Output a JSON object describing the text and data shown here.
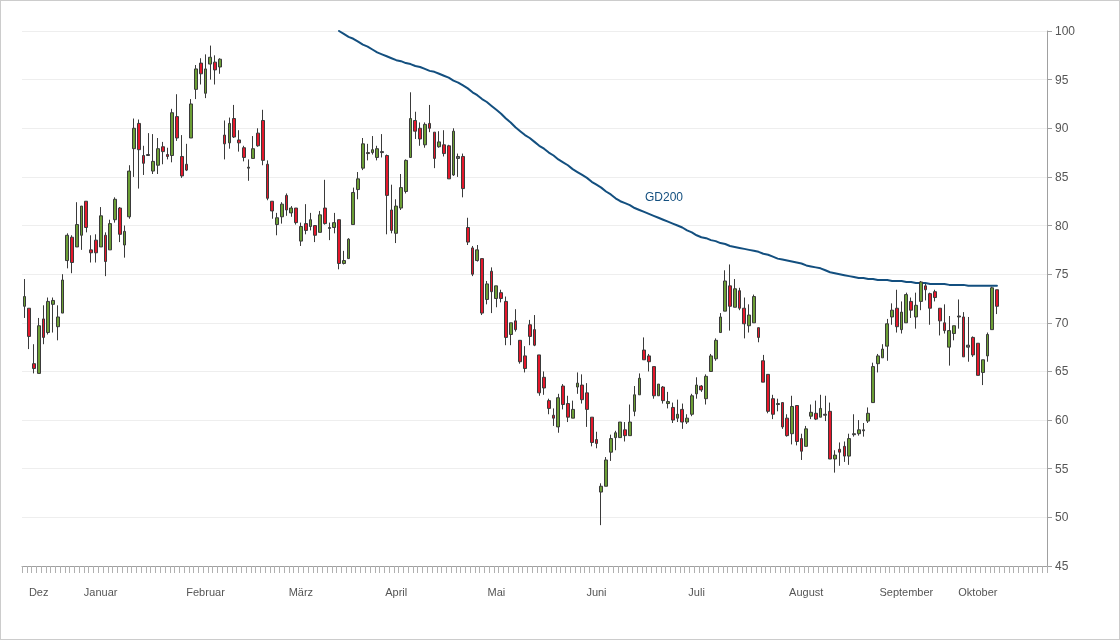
{
  "chart_data": {
    "type": "candlestick",
    "categories": [
      null,
      null,
      null,
      "Dez",
      null,
      null,
      null,
      null,
      null,
      null,
      null,
      null,
      null,
      null,
      null,
      null,
      "Januar",
      null,
      null,
      null,
      null,
      null,
      null,
      null,
      null,
      null,
      null,
      null,
      null,
      null,
      null,
      null,
      null,
      null,
      null,
      null,
      null,
      null,
      "Februar",
      null,
      null,
      null,
      null,
      null,
      null,
      null,
      null,
      null,
      null,
      null,
      null,
      null,
      null,
      null,
      null,
      null,
      null,
      null,
      "März",
      null,
      null,
      null,
      null,
      null,
      null,
      null,
      null,
      null,
      null,
      null,
      null,
      null,
      null,
      null,
      null,
      null,
      null,
      null,
      "April",
      null,
      null,
      null,
      null,
      null,
      null,
      null,
      null,
      null,
      null,
      null,
      null,
      null,
      null,
      null,
      null,
      null,
      null,
      null,
      null,
      "Mai",
      null,
      null,
      null,
      null,
      null,
      null,
      null,
      null,
      null,
      null,
      null,
      null,
      null,
      null,
      null,
      null,
      null,
      null,
      null,
      null,
      "Juni",
      null,
      null,
      null,
      null,
      null,
      null,
      null,
      null,
      null,
      null,
      null,
      null,
      null,
      null,
      null,
      null,
      null,
      null,
      null,
      null,
      "Juli",
      null,
      null,
      null,
      null,
      null,
      null,
      null,
      null,
      null,
      null,
      null,
      null,
      null,
      null,
      null,
      null,
      null,
      null,
      null,
      null,
      null,
      null,
      "August",
      null,
      null,
      null,
      null,
      null,
      null,
      null,
      null,
      null,
      null,
      null,
      null,
      null,
      null,
      null,
      null,
      null,
      null,
      null,
      null,
      "September",
      null,
      null,
      null,
      null,
      null,
      null,
      null,
      null,
      null,
      null,
      null,
      null,
      null,
      null,
      "Oktober",
      null,
      null,
      null,
      null
    ],
    "ohlc": [
      [
        71.7,
        74.5,
        70.5,
        72.7
      ],
      [
        71.5,
        71.5,
        67.3,
        68.6
      ],
      [
        65.8,
        67.8,
        64.8,
        65.3
      ],
      [
        64.8,
        70.5,
        64.8,
        69.7
      ],
      [
        70.4,
        71.8,
        67.8,
        68.5
      ],
      [
        69.0,
        72.6,
        68.8,
        72.2
      ],
      [
        71.9,
        72.6,
        69.0,
        72.3
      ],
      [
        69.6,
        71.8,
        68.2,
        70.6
      ],
      [
        71.0,
        75.0,
        71.0,
        74.4
      ],
      [
        76.4,
        79.2,
        75.6,
        79.0
      ],
      [
        78.8,
        79.0,
        75.1,
        76.2
      ],
      [
        77.8,
        82.4,
        77.8,
        80.1
      ],
      [
        79.0,
        82.0,
        77.5,
        82.0
      ],
      [
        82.5,
        82.5,
        79.3,
        79.8
      ],
      [
        77.5,
        79.0,
        76.2,
        77.2
      ],
      [
        78.5,
        79.1,
        76.2,
        77.2
      ],
      [
        77.8,
        81.9,
        77.8,
        81.0
      ],
      [
        79.0,
        79.3,
        74.8,
        76.3
      ],
      [
        77.5,
        80.6,
        77.5,
        80.2
      ],
      [
        80.6,
        82.9,
        80.3,
        82.7
      ],
      [
        81.8,
        81.9,
        78.3,
        79.1
      ],
      [
        78.0,
        80.0,
        76.7,
        79.4
      ],
      [
        80.9,
        86.2,
        80.7,
        85.6
      ],
      [
        87.9,
        91.0,
        85.0,
        90.0
      ],
      [
        90.5,
        90.9,
        83.8,
        87.8
      ],
      [
        87.2,
        88.2,
        85.2,
        86.4
      ],
      [
        87.3,
        89.5,
        87.2,
        87.2
      ],
      [
        85.6,
        89.4,
        85.3,
        86.6
      ],
      [
        86.2,
        89.0,
        85.3,
        87.9
      ],
      [
        88.1,
        88.6,
        86.3,
        87.6
      ],
      [
        87.3,
        88.0,
        86.8,
        87.1
      ],
      [
        87.2,
        92.0,
        86.5,
        91.6
      ],
      [
        91.2,
        93.5,
        88.7,
        89.0
      ],
      [
        87.1,
        89.3,
        84.9,
        85.1
      ],
      [
        86.3,
        88.4,
        85.6,
        85.7
      ],
      [
        89.0,
        93.0,
        89.0,
        92.5
      ],
      [
        94.0,
        96.5,
        93.0,
        96.1
      ],
      [
        96.7,
        97.2,
        94.5,
        95.6
      ],
      [
        93.6,
        97.6,
        93.1,
        96.1
      ],
      [
        96.6,
        98.5,
        95.0,
        97.3
      ],
      [
        96.8,
        97.5,
        94.5,
        96.0
      ],
      [
        96.3,
        97.2,
        95.6,
        97.1
      ],
      [
        89.3,
        90.8,
        86.8,
        88.4
      ],
      [
        88.5,
        91.1,
        87.9,
        90.5
      ],
      [
        91.0,
        92.4,
        89.0,
        89.1
      ],
      [
        88.8,
        89.8,
        87.6,
        88.5
      ],
      [
        88.0,
        88.2,
        86.6,
        87.0
      ],
      [
        86.0,
        86.8,
        84.6,
        85.9
      ],
      [
        86.9,
        89.2,
        86.9,
        87.9
      ],
      [
        89.5,
        90.0,
        88.1,
        88.2
      ],
      [
        90.8,
        91.9,
        86.2,
        86.7
      ],
      [
        86.3,
        86.7,
        82.6,
        82.8
      ],
      [
        82.5,
        82.5,
        80.7,
        81.5
      ],
      [
        80.1,
        81.3,
        79.0,
        80.8
      ],
      [
        80.9,
        82.4,
        80.2,
        82.2
      ],
      [
        83.1,
        83.3,
        81.0,
        81.6
      ],
      [
        81.3,
        82.0,
        80.9,
        81.8
      ],
      [
        81.8,
        81.8,
        80.1,
        80.3
      ],
      [
        78.4,
        80.3,
        77.9,
        79.9
      ],
      [
        80.2,
        82.2,
        79.1,
        79.5
      ],
      [
        79.9,
        81.3,
        79.5,
        80.6
      ],
      [
        80.0,
        80.0,
        78.3,
        79.0
      ],
      [
        79.3,
        81.5,
        79.3,
        81.1
      ],
      [
        81.8,
        84.7,
        80.1,
        80.2
      ],
      [
        79.8,
        80.3,
        78.5,
        79.7
      ],
      [
        79.8,
        81.3,
        79.2,
        80.3
      ],
      [
        80.6,
        80.6,
        75.5,
        76.1
      ],
      [
        76.1,
        77.4,
        76.0,
        76.4
      ],
      [
        76.6,
        78.7,
        76.6,
        78.6
      ],
      [
        80.1,
        83.9,
        80.1,
        83.4
      ],
      [
        83.7,
        85.5,
        82.7,
        84.8
      ],
      [
        85.9,
        89.0,
        85.7,
        88.4
      ],
      [
        87.5,
        88.4,
        86.7,
        87.4
      ],
      [
        87.5,
        89.2,
        87.3,
        87.8
      ],
      [
        87.0,
        88.2,
        86.7,
        87.9
      ],
      [
        87.6,
        89.4,
        87.0,
        87.5
      ],
      [
        87.2,
        87.3,
        79.1,
        83.1
      ],
      [
        81.6,
        84.2,
        79.2,
        79.5
      ],
      [
        79.2,
        82.7,
        78.2,
        82.0
      ],
      [
        81.8,
        85.3,
        81.6,
        83.9
      ],
      [
        83.5,
        86.8,
        83.3,
        86.7
      ],
      [
        87.0,
        93.7,
        87.0,
        91.0
      ],
      [
        90.8,
        91.7,
        88.9,
        89.7
      ],
      [
        90.0,
        90.6,
        88.2,
        88.9
      ],
      [
        88.3,
        90.6,
        88.0,
        90.4
      ],
      [
        90.5,
        92.4,
        89.6,
        90.0
      ],
      [
        89.6,
        89.6,
        85.9,
        86.9
      ],
      [
        88.1,
        89.7,
        88.0,
        88.6
      ],
      [
        88.3,
        89.8,
        87.1,
        87.4
      ],
      [
        88.2,
        88.3,
        84.8,
        84.8
      ],
      [
        85.2,
        90.0,
        85.1,
        89.7
      ],
      [
        87.1,
        87.4,
        85.0,
        86.9
      ],
      [
        87.1,
        87.4,
        82.9,
        83.8
      ],
      [
        79.8,
        80.8,
        78.0,
        78.3
      ],
      [
        77.7,
        77.9,
        74.8,
        75.0
      ],
      [
        76.4,
        78.0,
        76.3,
        77.5
      ],
      [
        76.6,
        76.6,
        70.8,
        71.0
      ],
      [
        72.4,
        74.3,
        71.9,
        74.0
      ],
      [
        75.3,
        75.7,
        71.0,
        73.2
      ],
      [
        72.5,
        73.8,
        71.6,
        73.8
      ],
      [
        73.1,
        73.4,
        72.1,
        72.5
      ],
      [
        72.2,
        72.7,
        67.7,
        68.5
      ],
      [
        68.8,
        70.0,
        67.7,
        70.0
      ],
      [
        70.2,
        71.4,
        69.1,
        69.3
      ],
      [
        68.2,
        68.2,
        65.8,
        66.0
      ],
      [
        66.6,
        67.6,
        64.9,
        65.3
      ],
      [
        69.8,
        70.3,
        67.7,
        68.6
      ],
      [
        69.3,
        70.8,
        67.6,
        67.7
      ],
      [
        66.7,
        66.7,
        62.5,
        62.8
      ],
      [
        64.4,
        65.0,
        62.6,
        63.3
      ],
      [
        62.0,
        62.2,
        60.6,
        61.2
      ],
      [
        60.5,
        61.2,
        59.4,
        60.2
      ],
      [
        59.3,
        62.7,
        58.7,
        62.3
      ],
      [
        63.5,
        63.7,
        61.1,
        61.6
      ],
      [
        61.7,
        62.5,
        59.8,
        60.3
      ],
      [
        60.2,
        62.0,
        60.2,
        61.1
      ],
      [
        63.4,
        64.9,
        62.7,
        63.8
      ],
      [
        63.6,
        64.7,
        61.7,
        62.1
      ],
      [
        62.8,
        63.8,
        59.3,
        61.1
      ],
      [
        60.3,
        60.3,
        57.3,
        57.7
      ],
      [
        58.0,
        58.8,
        57.1,
        57.6
      ],
      [
        52.6,
        53.5,
        49.2,
        53.2
      ],
      [
        53.2,
        56.2,
        53.2,
        55.9
      ],
      [
        56.7,
        58.5,
        55.8,
        58.1
      ],
      [
        58.2,
        58.9,
        56.9,
        58.7
      ],
      [
        58.2,
        59.8,
        58.2,
        59.8
      ],
      [
        59.0,
        59.8,
        57.8,
        58.4
      ],
      [
        58.4,
        61.6,
        58.4,
        59.8
      ],
      [
        60.9,
        63.5,
        60.4,
        62.6
      ],
      [
        62.6,
        64.8,
        62.6,
        64.3
      ],
      [
        67.2,
        68.5,
        66.2,
        66.2
      ],
      [
        66.6,
        66.8,
        65.0,
        66.0
      ],
      [
        65.5,
        65.5,
        62.2,
        62.5
      ],
      [
        62.5,
        63.7,
        62.5,
        63.7
      ],
      [
        63.4,
        63.5,
        61.7,
        62.0
      ],
      [
        61.7,
        62.9,
        61.2,
        61.9
      ],
      [
        61.3,
        61.8,
        59.7,
        60.0
      ],
      [
        60.2,
        62.1,
        59.8,
        60.6
      ],
      [
        61.1,
        61.7,
        59.1,
        59.8
      ],
      [
        59.8,
        60.6,
        59.6,
        60.2
      ],
      [
        60.6,
        62.7,
        60.4,
        62.5
      ],
      [
        62.7,
        64.4,
        62.2,
        63.6
      ],
      [
        63.5,
        63.6,
        62.9,
        63.1
      ],
      [
        62.2,
        64.7,
        61.6,
        64.5
      ],
      [
        65.0,
        66.8,
        65.0,
        66.6
      ],
      [
        66.3,
        68.4,
        66.1,
        68.2
      ],
      [
        69.0,
        71.0,
        69.0,
        70.6
      ],
      [
        71.2,
        75.4,
        71.2,
        74.3
      ],
      [
        73.8,
        76.0,
        69.2,
        71.7
      ],
      [
        71.6,
        74.5,
        71.6,
        73.5
      ],
      [
        73.3,
        73.6,
        71.3,
        71.5
      ],
      [
        71.5,
        72.6,
        68.4,
        69.9
      ],
      [
        69.7,
        71.9,
        69.0,
        70.8
      ],
      [
        70.0,
        72.9,
        70.0,
        72.7
      ],
      [
        69.5,
        69.5,
        68.0,
        68.5
      ],
      [
        66.1,
        66.7,
        63.9,
        63.9
      ],
      [
        64.7,
        64.7,
        60.7,
        60.9
      ],
      [
        62.2,
        62.6,
        60.1,
        60.6
      ],
      [
        61.7,
        62.2,
        60.9,
        61.6
      ],
      [
        61.8,
        61.8,
        59.1,
        59.3
      ],
      [
        60.2,
        60.6,
        58.3,
        58.4
      ],
      [
        58.6,
        62.5,
        57.5,
        61.4
      ],
      [
        61.5,
        61.5,
        57.4,
        57.8
      ],
      [
        58.1,
        58.6,
        55.9,
        56.8
      ],
      [
        57.3,
        59.4,
        57.3,
        59.1
      ],
      [
        60.4,
        61.6,
        60.1,
        60.8
      ],
      [
        60.7,
        62.0,
        60.0,
        60.1
      ],
      [
        60.3,
        62.6,
        60.3,
        61.2
      ],
      [
        60.6,
        62.5,
        59.9,
        60.5
      ],
      [
        60.9,
        61.8,
        56.0,
        56.0
      ],
      [
        56.0,
        56.9,
        54.6,
        56.4
      ],
      [
        57.0,
        57.7,
        55.3,
        56.7
      ],
      [
        57.3,
        57.8,
        55.7,
        56.3
      ],
      [
        56.3,
        58.6,
        55.4,
        58.1
      ],
      [
        58.6,
        60.6,
        58.3,
        58.5
      ],
      [
        58.6,
        60.0,
        58.4,
        59.0
      ],
      [
        59.0,
        59.7,
        58.3,
        58.9
      ],
      [
        59.9,
        61.3,
        59.7,
        60.7
      ],
      [
        61.8,
        65.9,
        61.8,
        65.5
      ],
      [
        65.8,
        66.8,
        64.9,
        66.6
      ],
      [
        66.4,
        67.8,
        66.4,
        67.3
      ],
      [
        67.6,
        70.4,
        66.1,
        69.9
      ],
      [
        70.6,
        72.0,
        69.8,
        71.3
      ],
      [
        71.5,
        73.4,
        69.0,
        69.6
      ],
      [
        69.3,
        72.2,
        68.9,
        71.1
      ],
      [
        70.0,
        73.1,
        70.0,
        72.9
      ],
      [
        72.2,
        72.6,
        70.5,
        71.3
      ],
      [
        70.6,
        73.1,
        69.4,
        71.8
      ],
      [
        72.2,
        74.3,
        71.3,
        74.2
      ],
      [
        73.8,
        74.0,
        72.3,
        73.4
      ],
      [
        73.0,
        73.1,
        69.8,
        71.5
      ],
      [
        73.2,
        73.4,
        72.2,
        72.6
      ],
      [
        71.5,
        71.5,
        68.7,
        70.2
      ],
      [
        70.0,
        71.9,
        68.9,
        69.2
      ],
      [
        67.5,
        70.7,
        65.6,
        69.2
      ],
      [
        68.9,
        69.7,
        68.2,
        69.7
      ],
      [
        70.7,
        72.4,
        69.4,
        70.6
      ],
      [
        70.6,
        71.1,
        66.5,
        66.5
      ],
      [
        67.7,
        70.6,
        66.0,
        67.5
      ],
      [
        68.5,
        68.6,
        66.5,
        66.7
      ],
      [
        67.9,
        67.9,
        64.6,
        64.6
      ],
      [
        64.9,
        66.2,
        63.6,
        66.2
      ],
      [
        66.6,
        69.0,
        66.0,
        68.8
      ],
      [
        69.3,
        73.7,
        69.3,
        73.6
      ],
      [
        73.4,
        73.4,
        70.9,
        71.7
      ]
    ],
    "colors": [
      "#6b9e35",
      "#e4172b",
      "#e4172b",
      "#6b9e35",
      "#e4172b",
      "#6b9e35",
      "#6b9e35",
      "#6b9e35",
      "#6b9e35",
      "#6b9e35",
      "#e4172b",
      "#6b9e35",
      "#6b9e35",
      "#e4172b",
      "#e4172b",
      "#e4172b",
      "#6b9e35",
      "#e4172b",
      "#6b9e35",
      "#6b9e35",
      "#e4172b",
      "#6b9e35",
      "#6b9e35",
      "#6b9e35",
      "#e4172b",
      "#e4172b",
      "#6e6e6e",
      "#6b9e35",
      "#6b9e35",
      "#e4172b",
      "#e4172b",
      "#6b9e35",
      "#e4172b",
      "#e4172b",
      "#e4172b",
      "#6b9e35",
      "#6b9e35",
      "#e4172b",
      "#6b9e35",
      "#6b9e35",
      "#e4172b",
      "#6b9e35",
      "#e4172b",
      "#6b9e35",
      "#e4172b",
      "#e4172b",
      "#e4172b",
      "#6e6e6e",
      "#6b9e35",
      "#e4172b",
      "#e4172b",
      "#e4172b",
      "#e4172b",
      "#6b9e35",
      "#6b9e35",
      "#e4172b",
      "#6b9e35",
      "#e4172b",
      "#6b9e35",
      "#e4172b",
      "#6b9e35",
      "#e4172b",
      "#6b9e35",
      "#e4172b",
      "#6e6e6e",
      "#6b9e35",
      "#e4172b",
      "#6b9e35",
      "#6b9e35",
      "#6b9e35",
      "#6b9e35",
      "#6b9e35",
      "#6e6e6e",
      "#6b9e35",
      "#6b9e35",
      "#6e6e6e",
      "#e4172b",
      "#e4172b",
      "#6b9e35",
      "#6b9e35",
      "#6b9e35",
      "#6b9e35",
      "#e4172b",
      "#e4172b",
      "#6b9e35",
      "#e4172b",
      "#e4172b",
      "#6b9e35",
      "#e4172b",
      "#e4172b",
      "#6b9e35",
      "#6e6e6e",
      "#e4172b",
      "#e4172b",
      "#e4172b",
      "#6b9e35",
      "#e4172b",
      "#6b9e35",
      "#e4172b",
      "#6b9e35",
      "#e4172b",
      "#e4172b",
      "#6b9e35",
      "#e4172b",
      "#e4172b",
      "#e4172b",
      "#e4172b",
      "#e4172b",
      "#e4172b",
      "#e4172b",
      "#e4172b",
      "#e4172b",
      "#6b9e35",
      "#e4172b",
      "#e4172b",
      "#6b9e35",
      "#6b9e35",
      "#e4172b",
      "#e4172b",
      "#e4172b",
      "#e4172b",
      "#6b9e35",
      "#6b9e35",
      "#6b9e35",
      "#6b9e35",
      "#6b9e35",
      "#e4172b",
      "#6b9e35",
      "#6b9e35",
      "#6b9e35",
      "#e4172b",
      "#e4172b",
      "#e4172b",
      "#6b9e35",
      "#e4172b",
      "#6b9e35",
      "#e4172b",
      "#6b9e35",
      "#e4172b",
      "#6b9e35",
      "#6b9e35",
      "#6b9e35",
      "#e4172b",
      "#6b9e35",
      "#6b9e35",
      "#6b9e35",
      "#6b9e35",
      "#6b9e35",
      "#e4172b",
      "#6b9e35",
      "#e4172b",
      "#e4172b",
      "#6b9e35",
      "#6b9e35",
      "#e4172b",
      "#e4172b",
      "#e4172b",
      "#e4172b",
      "#6e6e6e",
      "#e4172b",
      "#e4172b",
      "#6b9e35",
      "#e4172b",
      "#e4172b",
      "#6b9e35",
      "#6b9e35",
      "#e4172b",
      "#6b9e35",
      "#6e6e6e",
      "#e4172b",
      "#6b9e35",
      "#e4172b",
      "#e4172b",
      "#6b9e35",
      "#6e6e6e",
      "#6b9e35",
      "#6e6e6e",
      "#6b9e35",
      "#6b9e35",
      "#6b9e35",
      "#6b9e35",
      "#6b9e35",
      "#6b9e35",
      "#e4172b",
      "#6b9e35",
      "#6b9e35",
      "#e4172b",
      "#6b9e35",
      "#6b9e35",
      "#e4172b",
      "#e4172b",
      "#e4172b",
      "#e4172b",
      "#e4172b",
      "#6b9e35",
      "#6b9e35",
      "#6e6e6e",
      "#e4172b",
      "#6e6e6e",
      "#e4172b",
      "#e4172b",
      "#6b9e35",
      "#6b9e35",
      "#6b9e35",
      "#e4172b"
    ],
    "series": [
      {
        "type": "line",
        "name": "GD200",
        "color": "#134f7f",
        "values": [
          null,
          null,
          null,
          null,
          null,
          null,
          null,
          null,
          null,
          null,
          null,
          null,
          null,
          null,
          null,
          null,
          null,
          null,
          null,
          null,
          null,
          null,
          null,
          null,
          null,
          null,
          null,
          null,
          null,
          null,
          null,
          null,
          null,
          null,
          null,
          null,
          null,
          null,
          null,
          null,
          null,
          null,
          null,
          null,
          null,
          null,
          null,
          null,
          null,
          null,
          null,
          null,
          null,
          null,
          null,
          null,
          null,
          null,
          null,
          null,
          null,
          null,
          null,
          null,
          null,
          null,
          100.0,
          99.7,
          99.4,
          99.2,
          98.9,
          98.6,
          98.4,
          98.1,
          97.8,
          97.6,
          97.4,
          97.2,
          97.0,
          96.9,
          96.7,
          96.6,
          96.4,
          96.3,
          96.1,
          95.9,
          95.8,
          95.6,
          95.4,
          95.2,
          94.9,
          94.7,
          94.4,
          94.1,
          93.7,
          93.4,
          93.0,
          92.7,
          92.3,
          91.9,
          91.5,
          91.0,
          90.6,
          90.1,
          89.7,
          89.3,
          89.0,
          88.6,
          88.2,
          87.9,
          87.5,
          87.2,
          86.8,
          86.5,
          86.2,
          85.8,
          85.5,
          85.2,
          84.9,
          84.5,
          84.2,
          83.9,
          83.5,
          83.2,
          82.8,
          82.5,
          82.3,
          82.1,
          81.8,
          81.6,
          81.4,
          81.2,
          81.0,
          80.8,
          80.6,
          80.4,
          80.2,
          80.0,
          79.8,
          79.5,
          79.3,
          79.0,
          78.8,
          78.7,
          78.5,
          78.4,
          78.2,
          78.1,
          77.9,
          77.8,
          77.7,
          77.6,
          77.5,
          77.4,
          77.3,
          77.1,
          77.0,
          76.8,
          76.6,
          76.5,
          76.4,
          76.3,
          76.2,
          76.1,
          75.9,
          75.8,
          75.7,
          75.6,
          75.4,
          75.2,
          75.1,
          75.0,
          74.9,
          74.8,
          74.7,
          74.6,
          74.6,
          74.5,
          74.5,
          74.4,
          74.4,
          74.4,
          74.3,
          74.3,
          74.3,
          74.2,
          74.2,
          74.1,
          74.1,
          74.1,
          74.0,
          74.0,
          74.0,
          74.0,
          73.9,
          73.9,
          73.9,
          73.9,
          73.8,
          73.8,
          73.8,
          73.8,
          73.8,
          73.8,
          73.8
        ]
      }
    ],
    "ylim": [
      45,
      100
    ],
    "yticks": [
      45,
      50,
      55,
      60,
      65,
      70,
      75,
      80,
      85,
      90,
      95,
      100
    ],
    "grid": "y",
    "legend": false,
    "marker": "none"
  }
}
